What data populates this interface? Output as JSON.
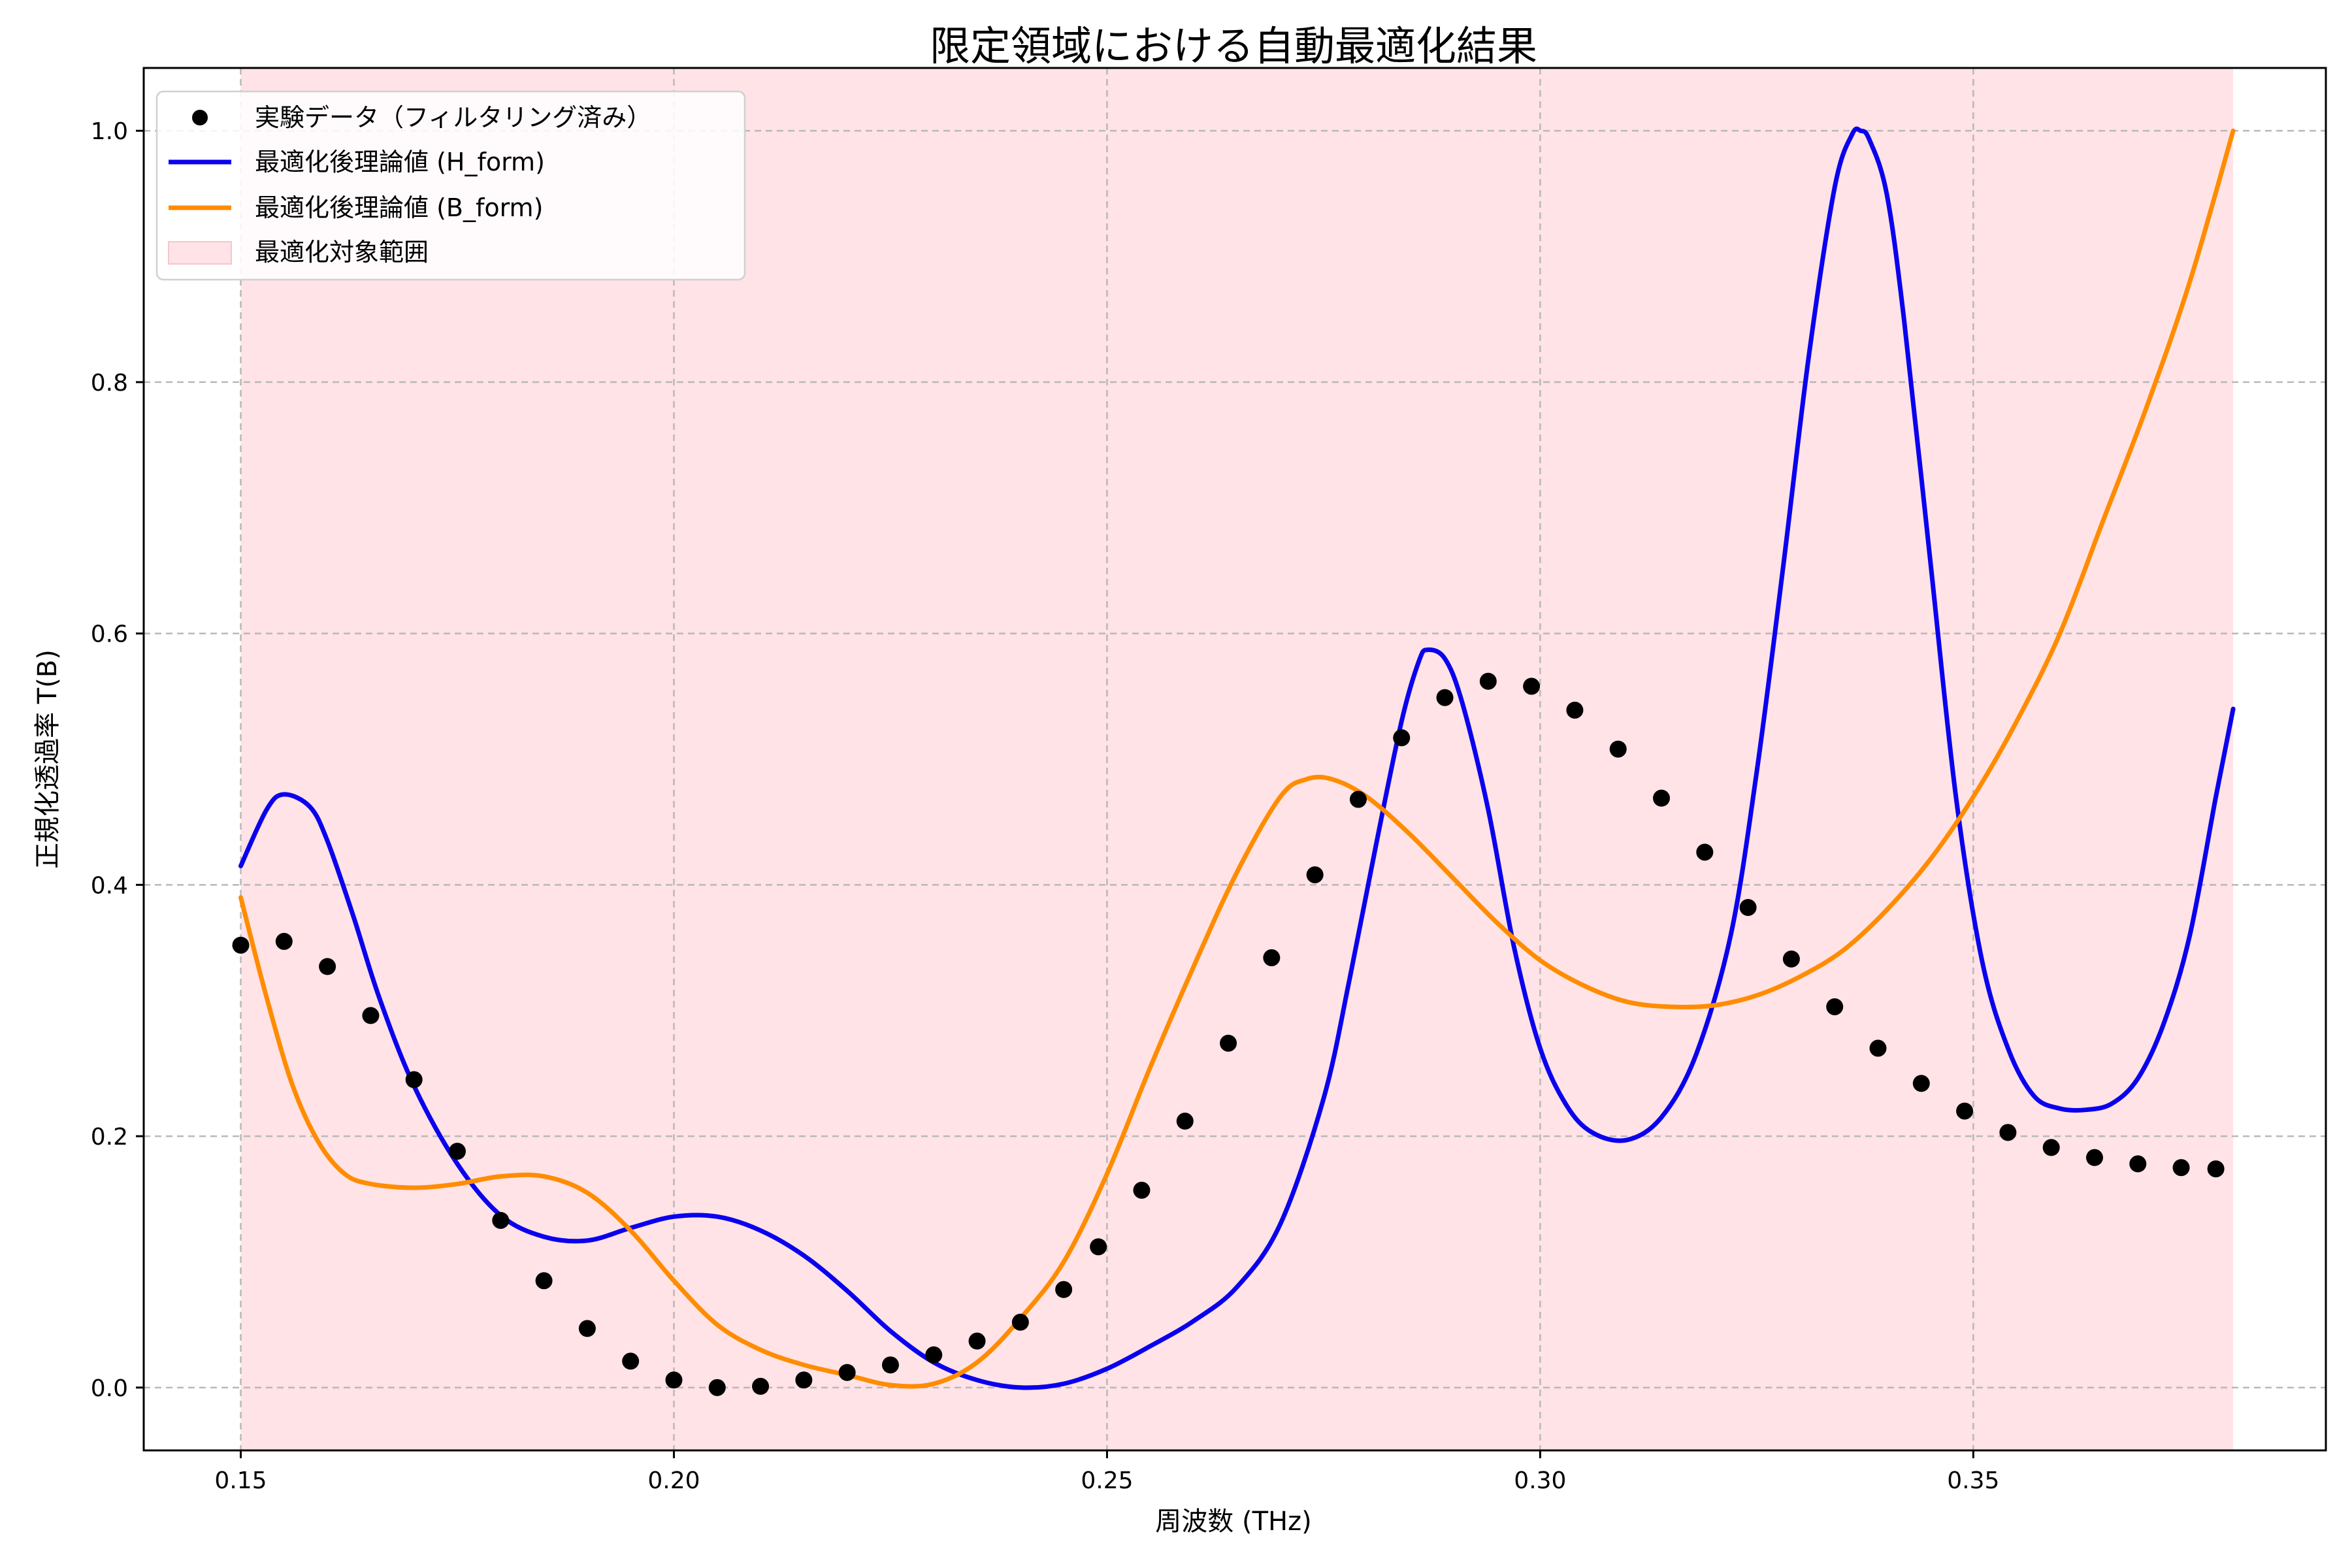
{
  "chart_data": {
    "type": "line",
    "title": "限定領域における自動最適化結果",
    "xlabel": "周波数 (THz)",
    "ylabel": "正規化透過率 T(B)",
    "xlim": [
      0.1388,
      0.3907
    ],
    "ylim": [
      -0.05,
      1.05
    ],
    "xticks": [
      0.15,
      0.2,
      0.25,
      0.3,
      0.35
    ],
    "xtick_labels": [
      "0.15",
      "0.20",
      "0.25",
      "0.30",
      "0.35"
    ],
    "yticks": [
      0.0,
      0.2,
      0.4,
      0.6,
      0.8,
      1.0
    ],
    "ytick_labels": [
      "0.0",
      "0.2",
      "0.4",
      "0.6",
      "0.8",
      "1.0"
    ],
    "grid": true,
    "legend_position": "upper-left",
    "shaded_region": {
      "label": "最適化対象範囲",
      "x0": 0.15,
      "x1": 0.38,
      "color": "#ffe3e6"
    },
    "series": [
      {
        "name": "実験データ（フィルタリング済み）",
        "kind": "scatter",
        "color": "#000000",
        "x": [
          0.15,
          0.155,
          0.16,
          0.165,
          0.17,
          0.175,
          0.18,
          0.185,
          0.19,
          0.195,
          0.2,
          0.205,
          0.21,
          0.215,
          0.22,
          0.225,
          0.23,
          0.235,
          0.24,
          0.245,
          0.249,
          0.254,
          0.259,
          0.264,
          0.269,
          0.274,
          0.279,
          0.284,
          0.289,
          0.294,
          0.299,
          0.304,
          0.309,
          0.314,
          0.319,
          0.324,
          0.329,
          0.334,
          0.339,
          0.344,
          0.349,
          0.354,
          0.359,
          0.364,
          0.369,
          0.374,
          0.378
        ],
        "y": [
          0.352,
          0.355,
          0.335,
          0.296,
          0.245,
          0.188,
          0.133,
          0.085,
          0.047,
          0.021,
          0.006,
          0.0,
          0.001,
          0.006,
          0.012,
          0.018,
          0.026,
          0.037,
          0.052,
          0.078,
          0.112,
          0.157,
          0.212,
          0.274,
          0.342,
          0.408,
          0.468,
          0.517,
          0.549,
          0.562,
          0.558,
          0.539,
          0.508,
          0.469,
          0.426,
          0.382,
          0.341,
          0.303,
          0.27,
          0.242,
          0.22,
          0.203,
          0.191,
          0.183,
          0.178,
          0.175,
          0.174
        ]
      },
      {
        "name": "最適化後理論値 (H_form)",
        "kind": "line",
        "color": "#0a00ee",
        "x": [
          0.15,
          0.153,
          0.155,
          0.158,
          0.16,
          0.163,
          0.166,
          0.17,
          0.175,
          0.18,
          0.185,
          0.19,
          0.195,
          0.2,
          0.205,
          0.21,
          0.215,
          0.22,
          0.225,
          0.23,
          0.235,
          0.24,
          0.245,
          0.25,
          0.255,
          0.26,
          0.265,
          0.27,
          0.275,
          0.278,
          0.281,
          0.284,
          0.286,
          0.287,
          0.289,
          0.291,
          0.294,
          0.297,
          0.3,
          0.303,
          0.306,
          0.31,
          0.314,
          0.318,
          0.322,
          0.325,
          0.328,
          0.331,
          0.334,
          0.336,
          0.337,
          0.338,
          0.34,
          0.342,
          0.345,
          0.348,
          0.351,
          0.354,
          0.357,
          0.36,
          0.363,
          0.366,
          0.369,
          0.372,
          0.375,
          0.378,
          0.38
        ],
        "y": [
          0.415,
          0.46,
          0.472,
          0.462,
          0.435,
          0.375,
          0.31,
          0.24,
          0.178,
          0.137,
          0.12,
          0.117,
          0.127,
          0.136,
          0.136,
          0.125,
          0.105,
          0.077,
          0.045,
          0.02,
          0.006,
          0.0,
          0.003,
          0.015,
          0.033,
          0.053,
          0.08,
          0.13,
          0.23,
          0.325,
          0.43,
          0.53,
          0.578,
          0.587,
          0.58,
          0.545,
          0.46,
          0.35,
          0.27,
          0.225,
          0.203,
          0.197,
          0.215,
          0.265,
          0.36,
          0.49,
          0.65,
          0.82,
          0.955,
          0.997,
          1.0,
          0.993,
          0.95,
          0.85,
          0.66,
          0.47,
          0.34,
          0.27,
          0.232,
          0.222,
          0.221,
          0.226,
          0.246,
          0.29,
          0.36,
          0.47,
          0.54
        ]
      },
      {
        "name": "最適化後理論値 (B_form)",
        "kind": "line",
        "color": "#ff8c00",
        "x": [
          0.15,
          0.153,
          0.156,
          0.159,
          0.162,
          0.165,
          0.17,
          0.175,
          0.18,
          0.185,
          0.19,
          0.195,
          0.2,
          0.205,
          0.21,
          0.215,
          0.22,
          0.225,
          0.23,
          0.235,
          0.24,
          0.245,
          0.25,
          0.255,
          0.26,
          0.265,
          0.27,
          0.273,
          0.276,
          0.28,
          0.285,
          0.29,
          0.295,
          0.3,
          0.305,
          0.31,
          0.315,
          0.32,
          0.325,
          0.33,
          0.335,
          0.34,
          0.345,
          0.35,
          0.355,
          0.36,
          0.365,
          0.37,
          0.375,
          0.38
        ],
        "y": [
          0.39,
          0.31,
          0.24,
          0.195,
          0.17,
          0.162,
          0.159,
          0.162,
          0.168,
          0.168,
          0.155,
          0.125,
          0.085,
          0.05,
          0.03,
          0.018,
          0.01,
          0.002,
          0.003,
          0.02,
          0.055,
          0.1,
          0.17,
          0.255,
          0.335,
          0.41,
          0.47,
          0.484,
          0.484,
          0.47,
          0.44,
          0.405,
          0.37,
          0.34,
          0.32,
          0.307,
          0.303,
          0.304,
          0.312,
          0.327,
          0.348,
          0.38,
          0.42,
          0.47,
          0.53,
          0.6,
          0.69,
          0.78,
          0.88,
          1.0
        ]
      }
    ]
  }
}
